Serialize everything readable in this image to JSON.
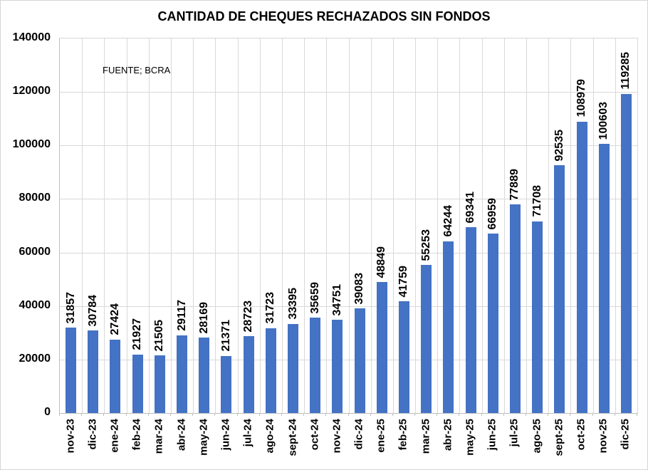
{
  "chart": {
    "title": "CANTIDAD DE CHEQUES RECHAZADOS SIN FONDOS",
    "source": "FUENTE; BCRA"
  },
  "chart_data": {
    "type": "bar",
    "title": "CANTIDAD DE CHEQUES RECHAZADOS SIN FONDOS",
    "source_note": "FUENTE; BCRA",
    "categories": [
      "nov-23",
      "dic-23",
      "ene-24",
      "feb-24",
      "mar-24",
      "abr-24",
      "may-24",
      "jun-24",
      "jul-24",
      "ago-24",
      "sept-24",
      "oct-24",
      "nov-24",
      "dic-24",
      "ene-25",
      "feb-25",
      "mar-25",
      "abr-25",
      "may-25",
      "jun-25",
      "jul-25",
      "ago-25",
      "sept-25",
      "oct-25",
      "nov-25",
      "dic-25"
    ],
    "values": [
      31857,
      30784,
      27424,
      21927,
      21505,
      29117,
      28169,
      21371,
      28723,
      31723,
      33395,
      35659,
      34751,
      39083,
      48849,
      41759,
      55253,
      64244,
      69341,
      66959,
      77889,
      71708,
      92535,
      108979,
      100603,
      119285
    ],
    "xlabel": "",
    "ylabel": "",
    "ylim": [
      0,
      140000
    ],
    "ytick_step": 20000,
    "yticks": [
      "0",
      "20000",
      "40000",
      "60000",
      "80000",
      "100000",
      "120000",
      "140000"
    ],
    "grid": true,
    "legend_position": "none",
    "value_labels_rotated": true,
    "x_labels_rotated": true,
    "bar_color": "#4472C4",
    "gridline_color": "#D9D9D9",
    "axis_color": "#BFBFBF",
    "text_color": "#000000"
  }
}
